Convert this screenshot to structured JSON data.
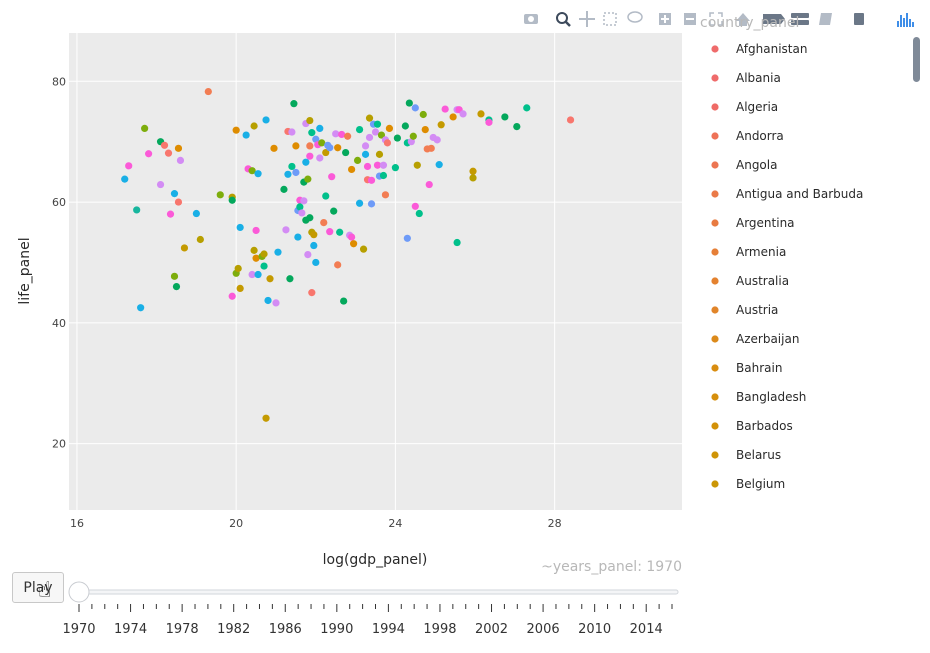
{
  "modebar": {
    "icons": [
      "camera-icon",
      "zoom-icon",
      "pan-icon",
      "box-select-icon",
      "lasso-icon",
      "zoom-in-icon",
      "zoom-out-icon",
      "autoscale-icon",
      "reset-icon",
      "spike-icon",
      "hover-closest-icon",
      "hover-compare-icon",
      "docs-icon",
      "plotly-logo-icon"
    ]
  },
  "legend": {
    "title": "country_panel",
    "items": [
      {
        "label": "Afghanistan",
        "color": "#ef6b6b"
      },
      {
        "label": "Albania",
        "color": "#ef6b6b"
      },
      {
        "label": "Algeria",
        "color": "#ef6b66"
      },
      {
        "label": "Andorra",
        "color": "#ee7257"
      },
      {
        "label": "Angola",
        "color": "#ec7552"
      },
      {
        "label": "Antigua and Barbuda",
        "color": "#ea7a48"
      },
      {
        "label": "Argentina",
        "color": "#e87b41"
      },
      {
        "label": "Armenia",
        "color": "#e67f37"
      },
      {
        "label": "Australia",
        "color": "#e4822f"
      },
      {
        "label": "Austria",
        "color": "#e1852a"
      },
      {
        "label": "Azerbaijan",
        "color": "#dc8a1b"
      },
      {
        "label": "Bahrain",
        "color": "#d98d10"
      },
      {
        "label": "Bangladesh",
        "color": "#d68f0c"
      },
      {
        "label": "Barbados",
        "color": "#d39108"
      },
      {
        "label": "Belarus",
        "color": "#cf9407"
      },
      {
        "label": "Belgium",
        "color": "#cb9606"
      }
    ]
  },
  "slider": {
    "current_label": "~years_panel: 1970",
    "ticks": [
      "1970",
      "1974",
      "1978",
      "1982",
      "1986",
      "1990",
      "1994",
      "1998",
      "2002",
      "2006",
      "2010",
      "2014"
    ],
    "value": 1970
  },
  "play_button": {
    "label": "Play"
  },
  "chart_data": {
    "type": "scatter",
    "xlabel": "log(gdp_panel)",
    "ylabel": "life_panel",
    "xlim": [
      15.8,
      31.2
    ],
    "ylim": [
      9,
      88
    ],
    "xticks": [
      16,
      20,
      24,
      28
    ],
    "yticks": [
      20,
      40,
      60,
      80
    ],
    "grid": true,
    "legend_position": "right",
    "background": "#ebebeb",
    "points": [
      {
        "x": 17.2,
        "y": 63.8,
        "c": "#19afe6"
      },
      {
        "x": 17.3,
        "y": 66.0,
        "c": "#fb5ad8"
      },
      {
        "x": 17.5,
        "y": 58.7,
        "c": "#17b69e"
      },
      {
        "x": 17.6,
        "y": 42.5,
        "c": "#19afe6"
      },
      {
        "x": 17.7,
        "y": 72.2,
        "c": "#7dad0c"
      },
      {
        "x": 17.8,
        "y": 68.0,
        "c": "#fb5ad8"
      },
      {
        "x": 18.1,
        "y": 70.0,
        "c": "#04a85c"
      },
      {
        "x": 18.1,
        "y": 62.9,
        "c": "#d38cf4"
      },
      {
        "x": 18.2,
        "y": 69.4,
        "c": "#f8766d"
      },
      {
        "x": 18.3,
        "y": 68.1,
        "c": "#f8766d"
      },
      {
        "x": 18.35,
        "y": 58.0,
        "c": "#fb5ad8"
      },
      {
        "x": 18.45,
        "y": 61.4,
        "c": "#19afe6"
      },
      {
        "x": 18.45,
        "y": 47.7,
        "c": "#7dad0c"
      },
      {
        "x": 18.5,
        "y": 46.0,
        "c": "#04a85c"
      },
      {
        "x": 18.55,
        "y": 68.9,
        "c": "#de8c00"
      },
      {
        "x": 18.55,
        "y": 60.0,
        "c": "#f8766d"
      },
      {
        "x": 18.6,
        "y": 66.9,
        "c": "#d38cf4"
      },
      {
        "x": 18.7,
        "y": 52.4,
        "c": "#c49a00"
      },
      {
        "x": 19.0,
        "y": 58.1,
        "c": "#19afe6"
      },
      {
        "x": 19.1,
        "y": 53.8,
        "c": "#b79f00"
      },
      {
        "x": 19.3,
        "y": 78.3,
        "c": "#f27d53"
      },
      {
        "x": 19.6,
        "y": 61.2,
        "c": "#7dad0c"
      },
      {
        "x": 19.9,
        "y": 60.8,
        "c": "#b79f00"
      },
      {
        "x": 19.9,
        "y": 60.3,
        "c": "#04a85c"
      },
      {
        "x": 19.9,
        "y": 44.4,
        "c": "#fb5ad8"
      },
      {
        "x": 20.0,
        "y": 71.9,
        "c": "#de8c00"
      },
      {
        "x": 20.0,
        "y": 48.2,
        "c": "#7dad0c"
      },
      {
        "x": 20.05,
        "y": 49.0,
        "c": "#b79f00"
      },
      {
        "x": 20.1,
        "y": 55.8,
        "c": "#19afe6"
      },
      {
        "x": 20.1,
        "y": 45.7,
        "c": "#c49a00"
      },
      {
        "x": 20.25,
        "y": 71.1,
        "c": "#19afe6"
      },
      {
        "x": 20.3,
        "y": 65.5,
        "c": "#fb5ad8"
      },
      {
        "x": 20.4,
        "y": 65.2,
        "c": "#7dad0c"
      },
      {
        "x": 20.4,
        "y": 48.0,
        "c": "#d38cf4"
      },
      {
        "x": 20.45,
        "y": 72.6,
        "c": "#b79f00"
      },
      {
        "x": 20.45,
        "y": 52.0,
        "c": "#b79f00"
      },
      {
        "x": 20.5,
        "y": 55.3,
        "c": "#fb5ad8"
      },
      {
        "x": 20.5,
        "y": 50.7,
        "c": "#de8c00"
      },
      {
        "x": 20.55,
        "y": 48.0,
        "c": "#19afe6"
      },
      {
        "x": 20.55,
        "y": 64.7,
        "c": "#19afe6"
      },
      {
        "x": 20.65,
        "y": 51.0,
        "c": "#7dad0c"
      },
      {
        "x": 20.7,
        "y": 49.4,
        "c": "#00c08b"
      },
      {
        "x": 20.7,
        "y": 51.4,
        "c": "#b79f00"
      },
      {
        "x": 20.75,
        "y": 73.6,
        "c": "#19afe6"
      },
      {
        "x": 20.75,
        "y": 24.2,
        "c": "#c49a00"
      },
      {
        "x": 20.8,
        "y": 43.7,
        "c": "#19afe6"
      },
      {
        "x": 20.85,
        "y": 47.3,
        "c": "#c49a00"
      },
      {
        "x": 20.95,
        "y": 68.9,
        "c": "#de8c00"
      },
      {
        "x": 21.0,
        "y": 43.3,
        "c": "#d38cf4"
      },
      {
        "x": 21.05,
        "y": 51.7,
        "c": "#19afe6"
      },
      {
        "x": 21.2,
        "y": 62.1,
        "c": "#04a85c"
      },
      {
        "x": 21.25,
        "y": 55.4,
        "c": "#d38cf4"
      },
      {
        "x": 21.3,
        "y": 71.7,
        "c": "#f8766d"
      },
      {
        "x": 21.3,
        "y": 64.6,
        "c": "#19afe6"
      },
      {
        "x": 21.35,
        "y": 47.3,
        "c": "#04a85c"
      },
      {
        "x": 21.4,
        "y": 65.9,
        "c": "#00c08b"
      },
      {
        "x": 21.4,
        "y": 71.6,
        "c": "#d38cf4"
      },
      {
        "x": 21.45,
        "y": 76.3,
        "c": "#04a85c"
      },
      {
        "x": 21.5,
        "y": 64.9,
        "c": "#6e9bf8"
      },
      {
        "x": 21.5,
        "y": 69.3,
        "c": "#de8c00"
      },
      {
        "x": 21.55,
        "y": 58.6,
        "c": "#6e9bf8"
      },
      {
        "x": 21.55,
        "y": 54.2,
        "c": "#19afe6"
      },
      {
        "x": 21.6,
        "y": 60.3,
        "c": "#fb5ad8"
      },
      {
        "x": 21.6,
        "y": 59.2,
        "c": "#00c08b"
      },
      {
        "x": 21.65,
        "y": 58.2,
        "c": "#d38cf4"
      },
      {
        "x": 21.7,
        "y": 63.3,
        "c": "#04a85c"
      },
      {
        "x": 21.7,
        "y": 60.2,
        "c": "#d38cf4"
      },
      {
        "x": 21.75,
        "y": 73.0,
        "c": "#d38cf4"
      },
      {
        "x": 21.75,
        "y": 66.6,
        "c": "#19afe6"
      },
      {
        "x": 21.75,
        "y": 57.0,
        "c": "#04a85c"
      },
      {
        "x": 21.8,
        "y": 63.8,
        "c": "#7dad0c"
      },
      {
        "x": 21.8,
        "y": 51.3,
        "c": "#d38cf4"
      },
      {
        "x": 21.85,
        "y": 73.5,
        "c": "#b79f00"
      },
      {
        "x": 21.85,
        "y": 69.3,
        "c": "#f27d53"
      },
      {
        "x": 21.85,
        "y": 67.6,
        "c": "#fb5ad8"
      },
      {
        "x": 21.85,
        "y": 57.4,
        "c": "#04a85c"
      },
      {
        "x": 21.9,
        "y": 55.0,
        "c": "#b79f00"
      },
      {
        "x": 21.9,
        "y": 71.5,
        "c": "#00c08b"
      },
      {
        "x": 21.9,
        "y": 45.0,
        "c": "#f8766d"
      },
      {
        "x": 21.95,
        "y": 52.8,
        "c": "#19afe6"
      },
      {
        "x": 21.95,
        "y": 54.6,
        "c": "#c49a00"
      },
      {
        "x": 22.0,
        "y": 50.0,
        "c": "#19afe6"
      },
      {
        "x": 22.0,
        "y": 70.4,
        "c": "#6e9bf8"
      },
      {
        "x": 22.05,
        "y": 69.5,
        "c": "#fb5ad8"
      },
      {
        "x": 22.1,
        "y": 72.2,
        "c": "#19afe6"
      },
      {
        "x": 22.1,
        "y": 67.3,
        "c": "#d38cf4"
      },
      {
        "x": 22.15,
        "y": 69.8,
        "c": "#7dad0c"
      },
      {
        "x": 22.2,
        "y": 56.6,
        "c": "#f27d53"
      },
      {
        "x": 22.25,
        "y": 61.0,
        "c": "#00c08b"
      },
      {
        "x": 22.25,
        "y": 68.2,
        "c": "#c49a00"
      },
      {
        "x": 22.3,
        "y": 69.4,
        "c": "#6e9bf8"
      },
      {
        "x": 22.35,
        "y": 69.0,
        "c": "#6e9bf8"
      },
      {
        "x": 22.35,
        "y": 55.1,
        "c": "#fb5ad8"
      },
      {
        "x": 22.4,
        "y": 64.2,
        "c": "#fb5ad8"
      },
      {
        "x": 22.45,
        "y": 58.5,
        "c": "#04a85c"
      },
      {
        "x": 22.5,
        "y": 71.3,
        "c": "#d38cf4"
      },
      {
        "x": 22.55,
        "y": 49.6,
        "c": "#f27d53"
      },
      {
        "x": 22.55,
        "y": 69.0,
        "c": "#de8c00"
      },
      {
        "x": 22.6,
        "y": 55.0,
        "c": "#00c08b"
      },
      {
        "x": 22.65,
        "y": 71.2,
        "c": "#fb5ad8"
      },
      {
        "x": 22.7,
        "y": 43.6,
        "c": "#04a85c"
      },
      {
        "x": 22.75,
        "y": 68.2,
        "c": "#04a85c"
      },
      {
        "x": 22.8,
        "y": 70.9,
        "c": "#f27d53"
      },
      {
        "x": 22.85,
        "y": 54.5,
        "c": "#d38cf4"
      },
      {
        "x": 22.9,
        "y": 54.2,
        "c": "#fb5ad8"
      },
      {
        "x": 22.9,
        "y": 65.4,
        "c": "#de8c00"
      },
      {
        "x": 22.95,
        "y": 53.1,
        "c": "#de8c00"
      },
      {
        "x": 23.05,
        "y": 66.9,
        "c": "#7dad0c"
      },
      {
        "x": 23.1,
        "y": 72.0,
        "c": "#00c08b"
      },
      {
        "x": 23.1,
        "y": 59.8,
        "c": "#19afe6"
      },
      {
        "x": 23.2,
        "y": 52.2,
        "c": "#b79f00"
      },
      {
        "x": 23.25,
        "y": 69.3,
        "c": "#d38cf4"
      },
      {
        "x": 23.25,
        "y": 67.9,
        "c": "#19afe6"
      },
      {
        "x": 23.3,
        "y": 65.9,
        "c": "#fb5ad8"
      },
      {
        "x": 23.3,
        "y": 63.7,
        "c": "#f8766d"
      },
      {
        "x": 23.35,
        "y": 70.7,
        "c": "#d38cf4"
      },
      {
        "x": 23.35,
        "y": 73.9,
        "c": "#b79f00"
      },
      {
        "x": 23.4,
        "y": 63.6,
        "c": "#fb5ad8"
      },
      {
        "x": 23.4,
        "y": 59.7,
        "c": "#6e9bf8"
      },
      {
        "x": 23.45,
        "y": 72.9,
        "c": "#6e9bf8"
      },
      {
        "x": 23.5,
        "y": 71.6,
        "c": "#d38cf4"
      },
      {
        "x": 23.55,
        "y": 72.9,
        "c": "#00c08b"
      },
      {
        "x": 23.55,
        "y": 66.1,
        "c": "#fb5ad8"
      },
      {
        "x": 23.6,
        "y": 64.3,
        "c": "#6e9bf8"
      },
      {
        "x": 23.6,
        "y": 67.9,
        "c": "#b79f00"
      },
      {
        "x": 23.65,
        "y": 71.1,
        "c": "#7dad0c"
      },
      {
        "x": 23.7,
        "y": 64.4,
        "c": "#00c08b"
      },
      {
        "x": 23.7,
        "y": 66.1,
        "c": "#d38cf4"
      },
      {
        "x": 23.75,
        "y": 61.2,
        "c": "#f27d53"
      },
      {
        "x": 23.75,
        "y": 70.3,
        "c": "#d38cf4"
      },
      {
        "x": 23.8,
        "y": 69.8,
        "c": "#f8766d"
      },
      {
        "x": 23.85,
        "y": 72.2,
        "c": "#de8c00"
      },
      {
        "x": 24.0,
        "y": 65.7,
        "c": "#00c08b"
      },
      {
        "x": 24.05,
        "y": 70.6,
        "c": "#04a85c"
      },
      {
        "x": 24.25,
        "y": 72.6,
        "c": "#04a85c"
      },
      {
        "x": 24.3,
        "y": 69.8,
        "c": "#00c08b"
      },
      {
        "x": 24.3,
        "y": 54.0,
        "c": "#6e9bf8"
      },
      {
        "x": 24.35,
        "y": 76.4,
        "c": "#04a85c"
      },
      {
        "x": 24.4,
        "y": 70.0,
        "c": "#d38cf4"
      },
      {
        "x": 24.45,
        "y": 70.9,
        "c": "#7dad0c"
      },
      {
        "x": 24.5,
        "y": 75.6,
        "c": "#6e9bf8"
      },
      {
        "x": 24.5,
        "y": 59.3,
        "c": "#fb5ad8"
      },
      {
        "x": 24.55,
        "y": 66.1,
        "c": "#b79f00"
      },
      {
        "x": 24.6,
        "y": 58.1,
        "c": "#00c08b"
      },
      {
        "x": 24.7,
        "y": 74.5,
        "c": "#7dad0c"
      },
      {
        "x": 24.75,
        "y": 72.0,
        "c": "#de8c00"
      },
      {
        "x": 24.8,
        "y": 68.8,
        "c": "#f27d53"
      },
      {
        "x": 24.85,
        "y": 62.9,
        "c": "#fb5ad8"
      },
      {
        "x": 24.9,
        "y": 68.9,
        "c": "#f27d53"
      },
      {
        "x": 24.95,
        "y": 70.7,
        "c": "#d38cf4"
      },
      {
        "x": 25.05,
        "y": 70.3,
        "c": "#d38cf4"
      },
      {
        "x": 25.1,
        "y": 66.2,
        "c": "#19afe6"
      },
      {
        "x": 25.15,
        "y": 72.8,
        "c": "#c49a00"
      },
      {
        "x": 25.25,
        "y": 75.4,
        "c": "#fb5ad8"
      },
      {
        "x": 25.45,
        "y": 74.1,
        "c": "#de8c00"
      },
      {
        "x": 25.55,
        "y": 75.3,
        "c": "#d38cf4"
      },
      {
        "x": 25.6,
        "y": 75.3,
        "c": "#fb5ad8"
      },
      {
        "x": 25.55,
        "y": 53.3,
        "c": "#00c08b"
      },
      {
        "x": 25.7,
        "y": 74.6,
        "c": "#d38cf4"
      },
      {
        "x": 25.95,
        "y": 65.1,
        "c": "#c49a00"
      },
      {
        "x": 25.95,
        "y": 64.0,
        "c": "#b79f00"
      },
      {
        "x": 26.15,
        "y": 74.6,
        "c": "#c49a00"
      },
      {
        "x": 26.35,
        "y": 73.6,
        "c": "#00c08b"
      },
      {
        "x": 26.35,
        "y": 73.2,
        "c": "#fb5ad8"
      },
      {
        "x": 26.75,
        "y": 74.1,
        "c": "#04a85c"
      },
      {
        "x": 27.05,
        "y": 72.5,
        "c": "#04a85c"
      },
      {
        "x": 27.3,
        "y": 75.6,
        "c": "#00c08b"
      },
      {
        "x": 28.4,
        "y": 73.6,
        "c": "#f8766d"
      }
    ]
  }
}
